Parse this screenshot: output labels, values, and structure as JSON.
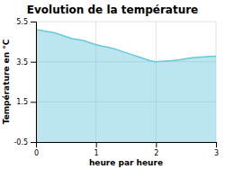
{
  "chart_data": {
    "type": "area",
    "title": "Evolution de la température",
    "x_label": "heure par heure",
    "y_label": "Température en °C",
    "x": [
      0,
      0.1,
      0.2,
      0.3,
      0.4,
      0.5,
      0.6,
      0.7,
      0.8,
      0.9,
      1.0,
      1.1,
      1.2,
      1.3,
      1.4,
      1.5,
      1.6,
      1.7,
      1.8,
      1.9,
      2.0,
      2.1,
      2.2,
      2.3,
      2.4,
      2.5,
      2.6,
      2.7,
      2.8,
      2.9,
      3.0
    ],
    "values": [
      5.1,
      5.05,
      5.0,
      4.95,
      4.85,
      4.75,
      4.65,
      4.6,
      4.55,
      4.45,
      4.35,
      4.28,
      4.22,
      4.15,
      4.05,
      3.95,
      3.85,
      3.75,
      3.65,
      3.55,
      3.5,
      3.52,
      3.54,
      3.56,
      3.6,
      3.65,
      3.7,
      3.72,
      3.74,
      3.76,
      3.78
    ],
    "color": "#6ac8dc",
    "xlim": [
      0,
      3
    ],
    "ylim": [
      -0.5,
      5.5
    ],
    "xticks": [
      0,
      1,
      2,
      3
    ],
    "yticks": [
      -0.5,
      1.5,
      3.5,
      5.5
    ],
    "grid": true
  }
}
